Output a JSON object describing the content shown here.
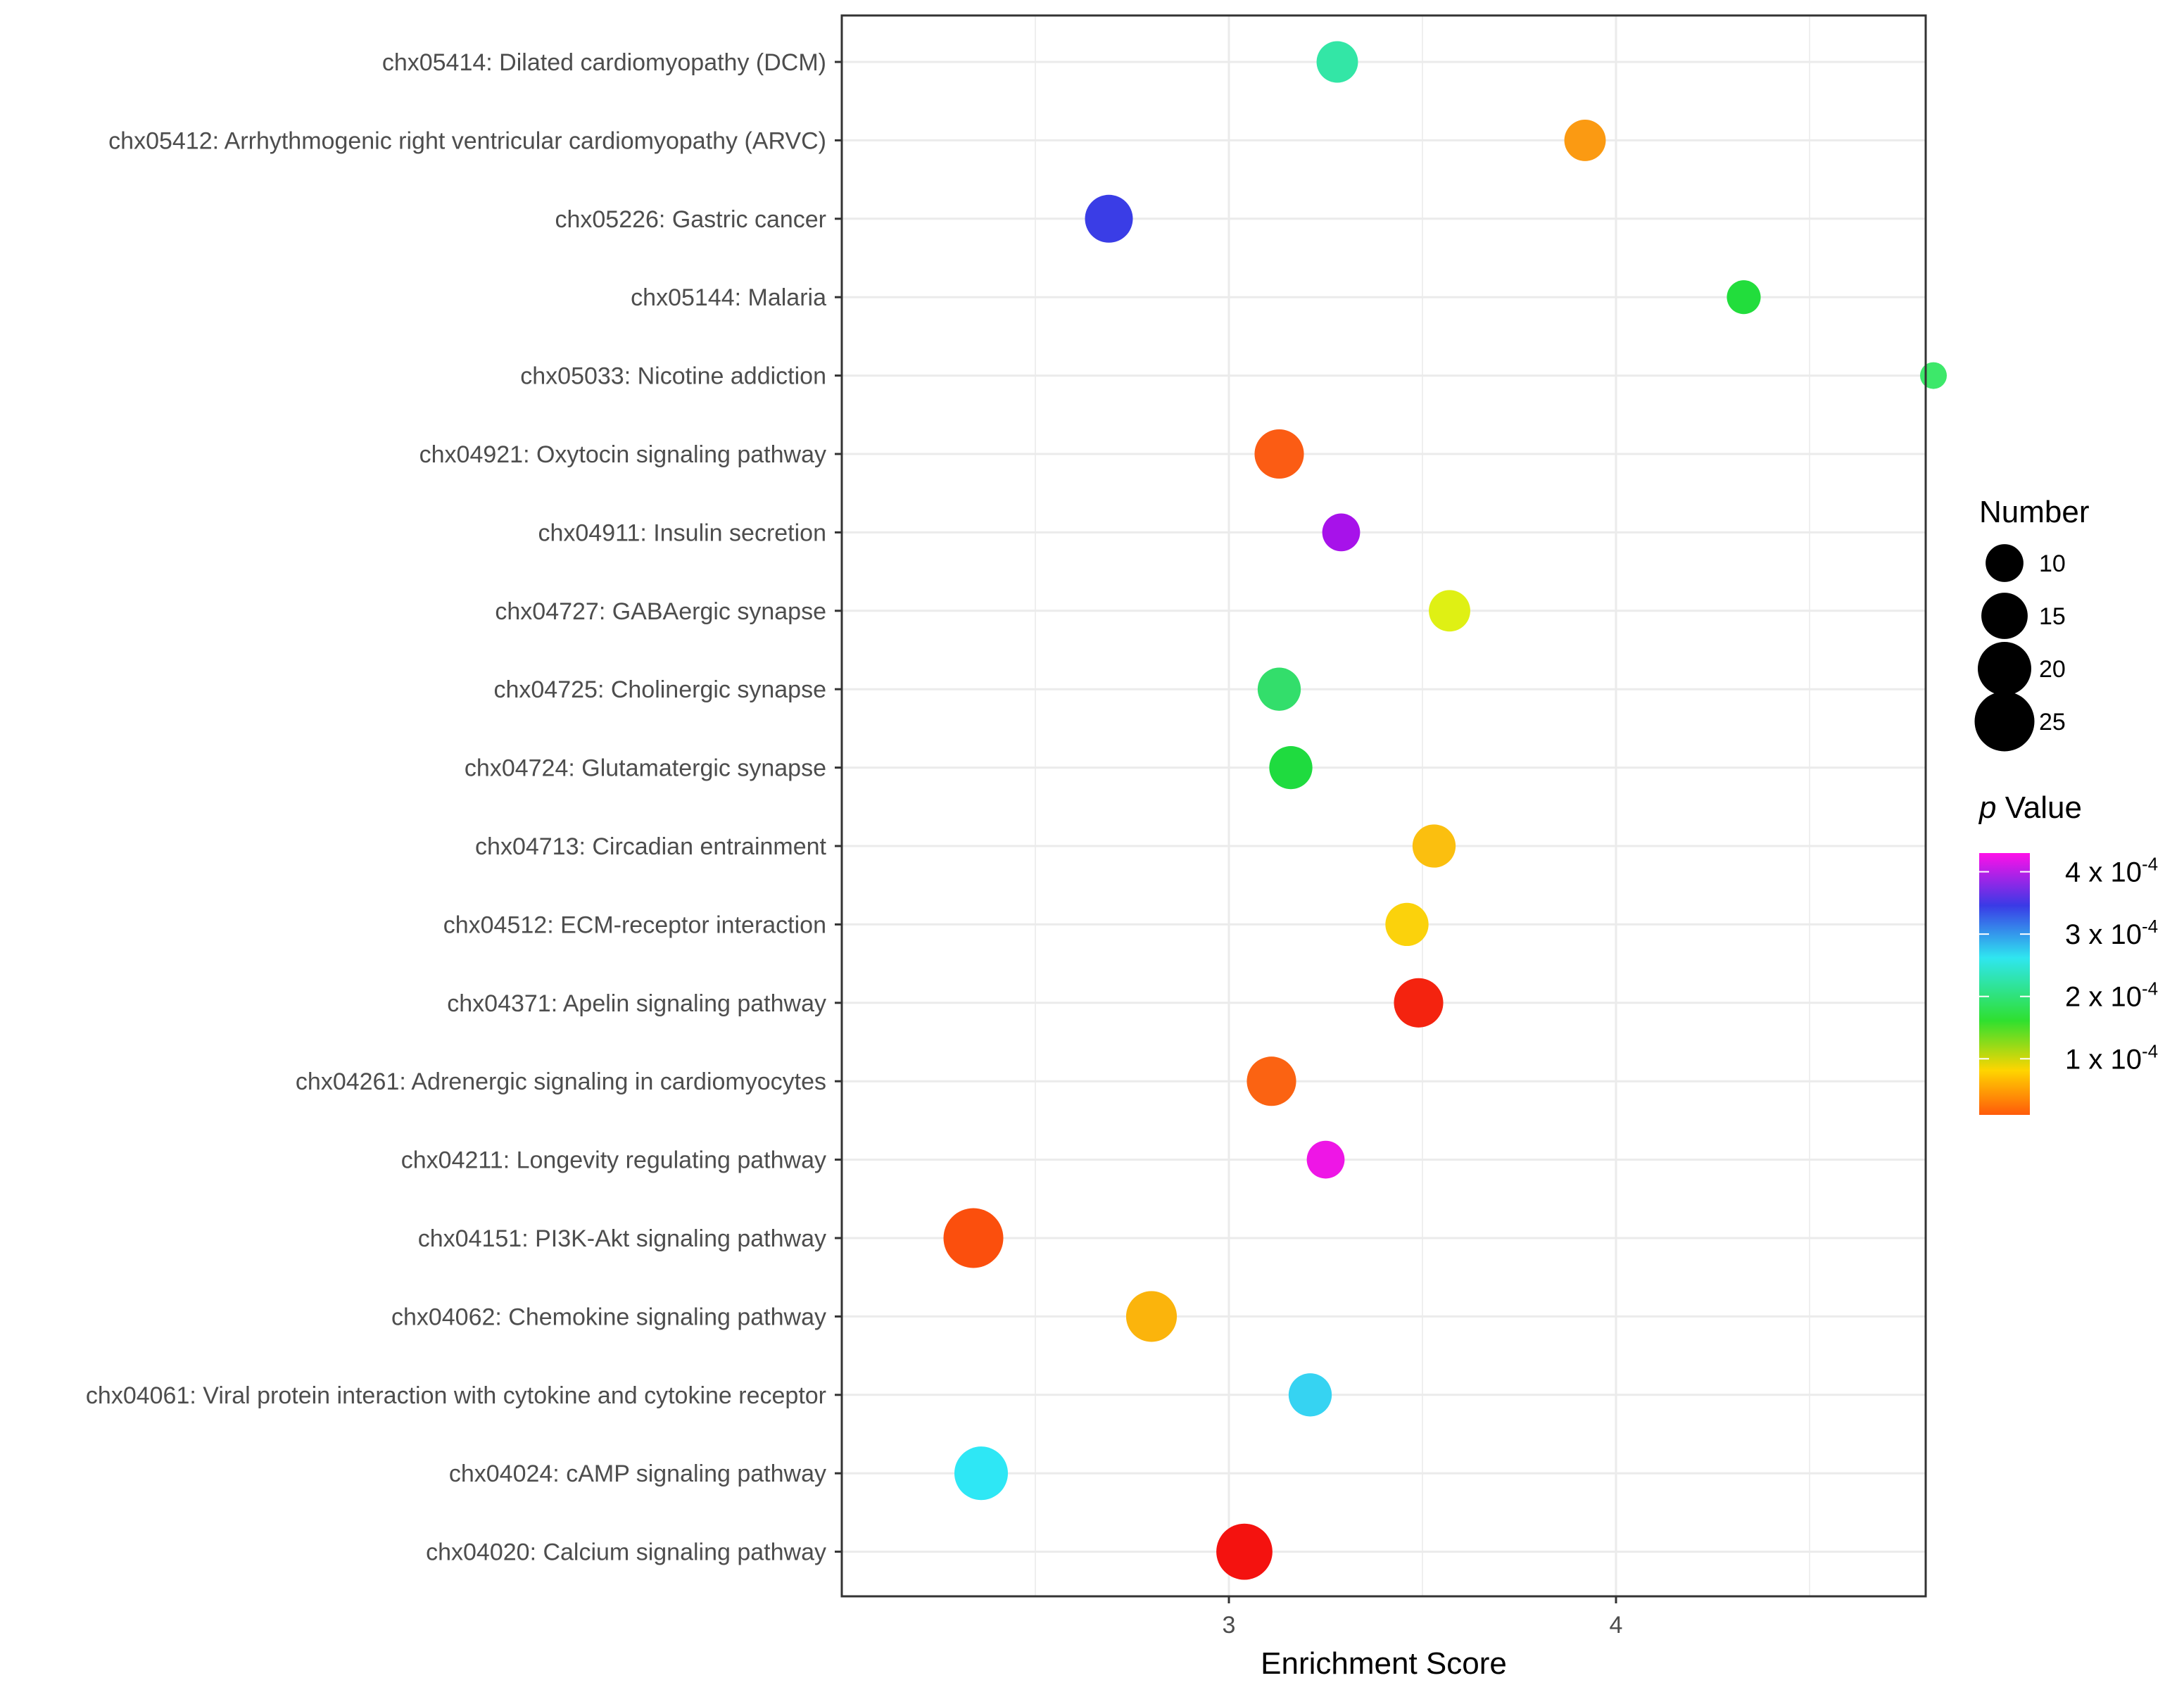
{
  "chart_data": {
    "type": "scatter",
    "xlabel": "Enrichment Score",
    "xlim": [
      2.0,
      4.8
    ],
    "xticks": [
      3,
      4
    ],
    "grid": true,
    "size_legend": {
      "title": "Number",
      "values": [
        10,
        15,
        20,
        25
      ]
    },
    "color_legend": {
      "title_italic": "p",
      "title_rest": " Value",
      "ticks": [
        {
          "base": "4 x 10",
          "exp": "-4",
          "value": 0.0004
        },
        {
          "base": "3 x 10",
          "exp": "-4",
          "value": 0.0003
        },
        {
          "base": "2 x 10",
          "exp": "-4",
          "value": 0.0002
        },
        {
          "base": "1 x 10",
          "exp": "-4",
          "value": 0.0001
        }
      ],
      "range": [
        1e-05,
        0.00043
      ]
    },
    "points": [
      {
        "label": "chx05414: Dilated cardiomyopathy (DCM)",
        "x": 3.28,
        "number": 12,
        "color": "#33e6a6"
      },
      {
        "label": "chx05412: Arrhythmogenic right ventricular cardiomyopathy (ARVC)",
        "x": 3.92,
        "number": 12,
        "color": "#fb9a12"
      },
      {
        "label": "chx05226: Gastric cancer",
        "x": 2.69,
        "number": 16,
        "color": "#3a3de6"
      },
      {
        "label": "chx05144: Malaria",
        "x": 4.33,
        "number": 8,
        "color": "#22dd3c"
      },
      {
        "label": "chx05033: Nicotine addiction",
        "x": 4.82,
        "number": 5,
        "color": "#3de86a"
      },
      {
        "label": "chx04921: Oxytocin signaling pathway",
        "x": 3.13,
        "number": 17,
        "color": "#fb5c14"
      },
      {
        "label": "chx04911: Insulin secretion",
        "x": 3.29,
        "number": 10,
        "color": "#a712ea"
      },
      {
        "label": "chx04727: GABAergic synapse",
        "x": 3.57,
        "number": 12,
        "color": "#dff014"
      },
      {
        "label": "chx04725: Cholinergic synapse",
        "x": 3.13,
        "number": 13,
        "color": "#33de6b"
      },
      {
        "label": "chx04724: Glutamatergic synapse",
        "x": 3.16,
        "number": 13,
        "color": "#1fdb3f"
      },
      {
        "label": "chx04713: Circadian entrainment",
        "x": 3.53,
        "number": 13,
        "color": "#fbbf0f"
      },
      {
        "label": "chx04512: ECM-receptor interaction",
        "x": 3.46,
        "number": 13,
        "color": "#fbd20c"
      },
      {
        "label": "chx04371: Apelin signaling pathway",
        "x": 3.49,
        "number": 17,
        "color": "#f4230f"
      },
      {
        "label": "chx04261: Adrenergic signaling in cardiomyocytes",
        "x": 3.11,
        "number": 17,
        "color": "#fb6312"
      },
      {
        "label": "chx04211: Longevity regulating pathway",
        "x": 3.25,
        "number": 10,
        "color": "#ee16e6"
      },
      {
        "label": "chx04151: PI3K-Akt signaling pathway",
        "x": 2.34,
        "number": 25,
        "color": "#fb4f0d"
      },
      {
        "label": "chx04062: Chemokine signaling pathway",
        "x": 2.8,
        "number": 18,
        "color": "#fbb40c"
      },
      {
        "label": "chx04061: Viral protein interaction with cytokine and cytokine receptor",
        "x": 3.21,
        "number": 13,
        "color": "#36d3f2"
      },
      {
        "label": "chx04024: cAMP signaling pathway",
        "x": 2.36,
        "number": 20,
        "color": "#2ee7f5"
      },
      {
        "label": "chx04020: Calcium signaling pathway",
        "x": 3.04,
        "number": 22,
        "color": "#f4120f"
      }
    ]
  }
}
